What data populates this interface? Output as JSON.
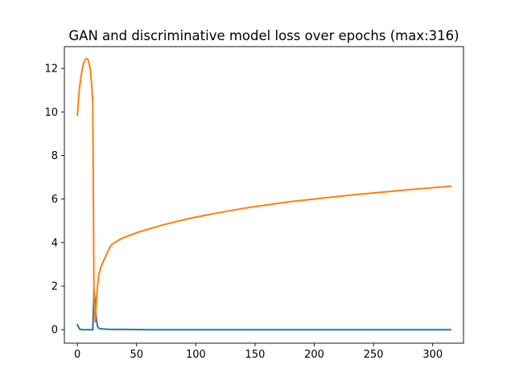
{
  "chart_data": {
    "type": "line",
    "title": "GAN and discriminative model loss over epochs (max:316)",
    "xlabel": "",
    "ylabel": "",
    "xlim": [
      -11,
      326
    ],
    "ylim": [
      -0.62,
      13.0
    ],
    "x_ticks": [
      0,
      50,
      100,
      150,
      200,
      250,
      300
    ],
    "y_ticks": [
      0,
      2,
      4,
      6,
      8,
      10,
      12
    ],
    "grid": false,
    "legend": "none",
    "series": [
      {
        "color": "#1f77b4",
        "points": [
          [
            0,
            0.22
          ],
          [
            2,
            0.02
          ],
          [
            4,
            0.0
          ],
          [
            6,
            0.0
          ],
          [
            8,
            0.0
          ],
          [
            10,
            0.0
          ],
          [
            12,
            0.0
          ],
          [
            13,
            0.0
          ],
          [
            14,
            1.85
          ],
          [
            15,
            1.2
          ],
          [
            16,
            0.5
          ],
          [
            17,
            0.15
          ],
          [
            18,
            0.07
          ],
          [
            20,
            0.04
          ],
          [
            25,
            0.02
          ],
          [
            30,
            0.01
          ],
          [
            40,
            0.01
          ],
          [
            60,
            0.0
          ],
          [
            100,
            0.0
          ],
          [
            150,
            0.0
          ],
          [
            200,
            0.0
          ],
          [
            250,
            0.0
          ],
          [
            300,
            0.0
          ],
          [
            315,
            0.0
          ]
        ]
      },
      {
        "color": "#ff7f0e",
        "points": [
          [
            0,
            9.85
          ],
          [
            1,
            10.6
          ],
          [
            2,
            11.2
          ],
          [
            3,
            11.6
          ],
          [
            4,
            11.95
          ],
          [
            5,
            12.2
          ],
          [
            6,
            12.35
          ],
          [
            7,
            12.43
          ],
          [
            8,
            12.45
          ],
          [
            9,
            12.4
          ],
          [
            10,
            12.2
          ],
          [
            11,
            11.9
          ],
          [
            12,
            11.3
          ],
          [
            13,
            10.4
          ],
          [
            14,
            1.5
          ],
          [
            15,
            0.35
          ],
          [
            16,
            1.3
          ],
          [
            17,
            2.0
          ],
          [
            18,
            2.5
          ],
          [
            20,
            2.9
          ],
          [
            22,
            3.15
          ],
          [
            25,
            3.5
          ],
          [
            28,
            3.85
          ],
          [
            30,
            3.95
          ],
          [
            35,
            4.12
          ],
          [
            40,
            4.25
          ],
          [
            50,
            4.45
          ],
          [
            60,
            4.62
          ],
          [
            70,
            4.78
          ],
          [
            80,
            4.92
          ],
          [
            90,
            5.05
          ],
          [
            100,
            5.17
          ],
          [
            120,
            5.38
          ],
          [
            140,
            5.57
          ],
          [
            160,
            5.73
          ],
          [
            180,
            5.88
          ],
          [
            200,
            6.0
          ],
          [
            220,
            6.12
          ],
          [
            240,
            6.23
          ],
          [
            260,
            6.33
          ],
          [
            280,
            6.43
          ],
          [
            300,
            6.52
          ],
          [
            315,
            6.59
          ]
        ]
      }
    ]
  }
}
